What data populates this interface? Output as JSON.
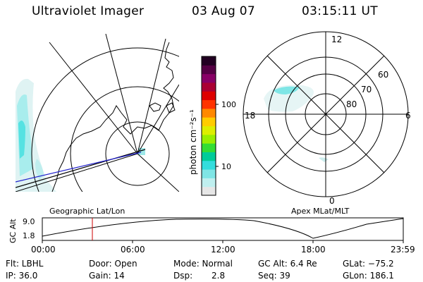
{
  "header": {
    "instrument": "Ultraviolet Imager",
    "date": "03 Aug 07",
    "time": "03:15:11 UT"
  },
  "colorbar": {
    "label": "photon cm⁻²s⁻¹",
    "ticks": [
      "100",
      "10"
    ],
    "colors": [
      "#e6e6e6",
      "#bfefef",
      "#7fe5e5",
      "#33dddd",
      "#00cc99",
      "#33dd33",
      "#99ee00",
      "#ddee00",
      "#ffcc00",
      "#ff8800",
      "#ff3300",
      "#dd0000",
      "#aa0033",
      "#880066",
      "#550044",
      "#220022"
    ]
  },
  "polar_plot": {
    "hour_labels": [
      "12",
      "18",
      "6",
      "0"
    ],
    "lat_labels": [
      "60",
      "70",
      "80"
    ]
  },
  "timeline": {
    "title_left": "Geographic Lat/Lon",
    "title_right": "Apex MLat/MLT",
    "ylabel": "GC Alt",
    "ytick_top": "9.0",
    "ytick_bottom": "1.8",
    "xticks": [
      "00:00",
      "06:00",
      "12:00",
      "18:00",
      "23:59"
    ]
  },
  "info": {
    "filter": "Flt: LBHL",
    "ip": "IP: 36.0",
    "door": "Door: Open",
    "gain": "Gain: 14",
    "mode": "Mode: Normal",
    "dsp_label": "Dsp:",
    "dsp_value": "2.8",
    "gc_alt": "GC Alt: 6.4 Re",
    "seq": "Seq: 39",
    "glat": "GLat: −75.2",
    "glon": "GLon: 186.1"
  }
}
